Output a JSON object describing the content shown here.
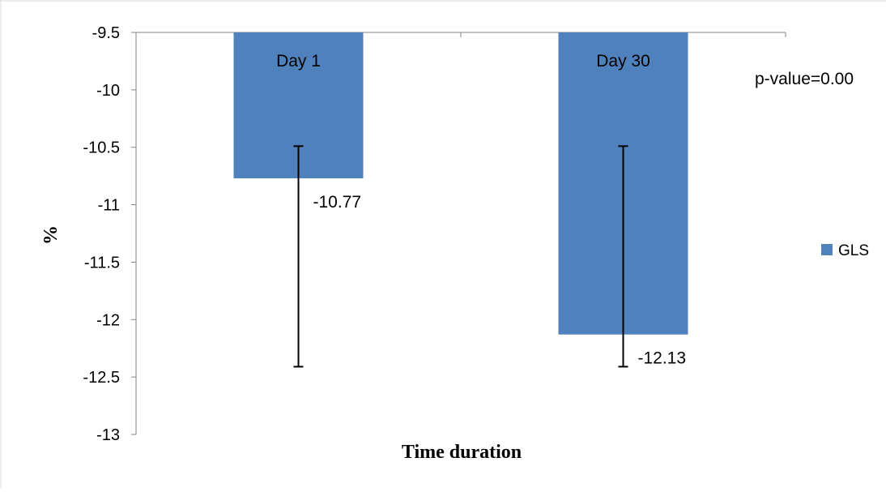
{
  "chart_data": {
    "type": "bar",
    "categories": [
      "Day 1",
      "Day 30"
    ],
    "series": [
      {
        "name": "GLS",
        "values": [
          -10.77,
          -12.13
        ],
        "data_labels": [
          "-10.77",
          "-12.13"
        ],
        "error_bars": [
          {
            "upper": -10.49,
            "lower": -12.41
          },
          {
            "upper": -10.49,
            "lower": -12.41
          }
        ],
        "color": "#4f81bd"
      }
    ],
    "title": "",
    "xlabel": "Time duration",
    "ylabel": "%",
    "ylim": [
      -13,
      -9.5
    ],
    "yticks": [
      -9.5,
      -10,
      -10.5,
      -11,
      -11.5,
      -12,
      -12.5,
      -13
    ],
    "ytick_labels": [
      "-9.5",
      "-10",
      "-10.5",
      "-11",
      "-11.5",
      "-12",
      "-12.5",
      "-13"
    ],
    "annotation": "p-value=0.00",
    "legend": {
      "entries": [
        "GLS"
      ],
      "position": "right"
    },
    "grid": false
  }
}
